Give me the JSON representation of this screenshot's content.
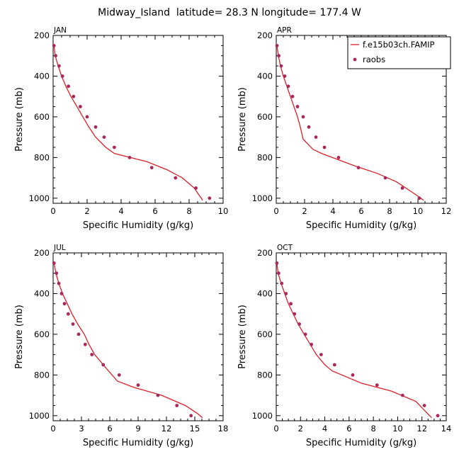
{
  "figure": {
    "title": "Midway_Island  latitude= 28.3 N longitude= 177.4 W"
  },
  "legend": {
    "position": "top-right",
    "model_label": "f.e15b03ch.FAMIP",
    "obs_label": "raobs",
    "model_color": "#e0202a",
    "obs_color": "#a8285a"
  },
  "chart_data": [
    {
      "type": "line",
      "panel": "JAN",
      "xlabel": "Specific Humidity (g/kg)",
      "ylabel": "Pressure (mb)",
      "xlim": [
        0,
        10
      ],
      "xticks": [
        0,
        2,
        4,
        6,
        8,
        10
      ],
      "ylim": [
        200,
        1025
      ],
      "yticks": [
        200,
        400,
        600,
        800,
        1000
      ],
      "y_inverted": true,
      "series": [
        {
          "kind": "line",
          "points": [
            [
              0.05,
              250
            ],
            [
              0.12,
              300
            ],
            [
              0.3,
              350
            ],
            [
              0.5,
              400
            ],
            [
              0.75,
              450
            ],
            [
              1.05,
              500
            ],
            [
              1.4,
              550
            ],
            [
              1.75,
              600
            ],
            [
              2.1,
              650
            ],
            [
              2.5,
              700
            ],
            [
              3.1,
              750
            ],
            [
              3.6,
              780
            ],
            [
              5.5,
              820
            ],
            [
              6.7,
              860
            ],
            [
              7.6,
              900
            ],
            [
              8.3,
              950
            ],
            [
              8.8,
              1010
            ]
          ]
        },
        {
          "kind": "scatter",
          "points": [
            [
              0.05,
              250
            ],
            [
              0.15,
              300
            ],
            [
              0.35,
              350
            ],
            [
              0.55,
              400
            ],
            [
              0.9,
              450
            ],
            [
              1.2,
              500
            ],
            [
              1.6,
              550
            ],
            [
              2.0,
              600
            ],
            [
              2.5,
              650
            ],
            [
              3.0,
              700
            ],
            [
              3.6,
              750
            ],
            [
              4.5,
              800
            ],
            [
              5.8,
              850
            ],
            [
              7.2,
              900
            ],
            [
              8.4,
              950
            ],
            [
              9.2,
              1000
            ]
          ]
        }
      ]
    },
    {
      "type": "line",
      "panel": "APR",
      "xlabel": "Specific Humidity (g/kg)",
      "ylabel": "Pressure (mb)",
      "xlim": [
        0,
        12
      ],
      "xticks": [
        0,
        2,
        4,
        6,
        8,
        10,
        12
      ],
      "ylim": [
        200,
        1025
      ],
      "yticks": [
        200,
        400,
        600,
        800,
        1000
      ],
      "y_inverted": true,
      "series": [
        {
          "kind": "line",
          "points": [
            [
              0.05,
              250
            ],
            [
              0.15,
              300
            ],
            [
              0.3,
              350
            ],
            [
              0.5,
              400
            ],
            [
              0.75,
              450
            ],
            [
              1.0,
              500
            ],
            [
              1.25,
              550
            ],
            [
              1.5,
              600
            ],
            [
              1.7,
              650
            ],
            [
              1.9,
              710
            ],
            [
              2.6,
              760
            ],
            [
              3.2,
              780
            ],
            [
              5.5,
              840
            ],
            [
              7.2,
              880
            ],
            [
              8.5,
              920
            ],
            [
              9.8,
              980
            ],
            [
              10.4,
              1010
            ]
          ]
        },
        {
          "kind": "scatter",
          "points": [
            [
              0.05,
              250
            ],
            [
              0.18,
              300
            ],
            [
              0.35,
              350
            ],
            [
              0.6,
              400
            ],
            [
              0.85,
              450
            ],
            [
              1.15,
              500
            ],
            [
              1.5,
              550
            ],
            [
              1.9,
              600
            ],
            [
              2.3,
              650
            ],
            [
              2.8,
              700
            ],
            [
              3.4,
              750
            ],
            [
              4.4,
              800
            ],
            [
              5.8,
              850
            ],
            [
              7.7,
              900
            ],
            [
              8.9,
              950
            ],
            [
              10.1,
              1000
            ]
          ]
        }
      ]
    },
    {
      "type": "line",
      "panel": "JUL",
      "xlabel": "Specific Humidity (g/kg)",
      "ylabel": "Pressure (mb)",
      "xlim": [
        0,
        18
      ],
      "xticks": [
        0,
        3,
        6,
        9,
        12,
        15,
        18
      ],
      "ylim": [
        200,
        1025
      ],
      "yticks": [
        200,
        400,
        600,
        800,
        1000
      ],
      "y_inverted": true,
      "series": [
        {
          "kind": "line",
          "points": [
            [
              0.1,
              250
            ],
            [
              0.3,
              300
            ],
            [
              0.6,
              350
            ],
            [
              1.0,
              400
            ],
            [
              1.5,
              450
            ],
            [
              2.0,
              500
            ],
            [
              2.6,
              550
            ],
            [
              3.3,
              600
            ],
            [
              3.8,
              650
            ],
            [
              4.4,
              700
            ],
            [
              5.5,
              760
            ],
            [
              6.8,
              830
            ],
            [
              8.5,
              860
            ],
            [
              11.5,
              900
            ],
            [
              14.0,
              950
            ],
            [
              15.3,
              990
            ],
            [
              15.8,
              1010
            ]
          ]
        },
        {
          "kind": "scatter",
          "points": [
            [
              0.1,
              250
            ],
            [
              0.35,
              300
            ],
            [
              0.6,
              350
            ],
            [
              0.9,
              400
            ],
            [
              1.2,
              450
            ],
            [
              1.6,
              500
            ],
            [
              2.1,
              550
            ],
            [
              2.7,
              600
            ],
            [
              3.4,
              650
            ],
            [
              4.1,
              700
            ],
            [
              5.3,
              750
            ],
            [
              7.0,
              800
            ],
            [
              9.0,
              850
            ],
            [
              11.1,
              900
            ],
            [
              13.1,
              950
            ],
            [
              14.6,
              1000
            ]
          ]
        }
      ]
    },
    {
      "type": "line",
      "panel": "OCT",
      "xlabel": "Specific Humidity (g/kg)",
      "ylabel": "Pressure (mb)",
      "xlim": [
        0,
        14
      ],
      "xticks": [
        0,
        2,
        4,
        6,
        8,
        10,
        12,
        14
      ],
      "ylim": [
        200,
        1025
      ],
      "yticks": [
        200,
        400,
        600,
        800,
        1000
      ],
      "y_inverted": true,
      "series": [
        {
          "kind": "line",
          "points": [
            [
              0.05,
              250
            ],
            [
              0.15,
              300
            ],
            [
              0.4,
              350
            ],
            [
              0.7,
              400
            ],
            [
              1.0,
              450
            ],
            [
              1.4,
              500
            ],
            [
              1.8,
              550
            ],
            [
              2.3,
              600
            ],
            [
              2.8,
              650
            ],
            [
              3.3,
              700
            ],
            [
              4.0,
              750
            ],
            [
              4.6,
              780
            ],
            [
              7.0,
              840
            ],
            [
              9.5,
              880
            ],
            [
              11.5,
              930
            ],
            [
              12.3,
              980
            ],
            [
              12.8,
              1010
            ]
          ]
        },
        {
          "kind": "scatter",
          "points": [
            [
              0.05,
              250
            ],
            [
              0.2,
              300
            ],
            [
              0.45,
              350
            ],
            [
              0.8,
              400
            ],
            [
              1.2,
              450
            ],
            [
              1.5,
              500
            ],
            [
              1.9,
              550
            ],
            [
              2.4,
              600
            ],
            [
              2.9,
              650
            ],
            [
              3.7,
              700
            ],
            [
              4.8,
              750
            ],
            [
              6.3,
              800
            ],
            [
              8.3,
              850
            ],
            [
              10.4,
              900
            ],
            [
              12.2,
              950
            ],
            [
              13.3,
              1000
            ]
          ]
        }
      ]
    }
  ]
}
